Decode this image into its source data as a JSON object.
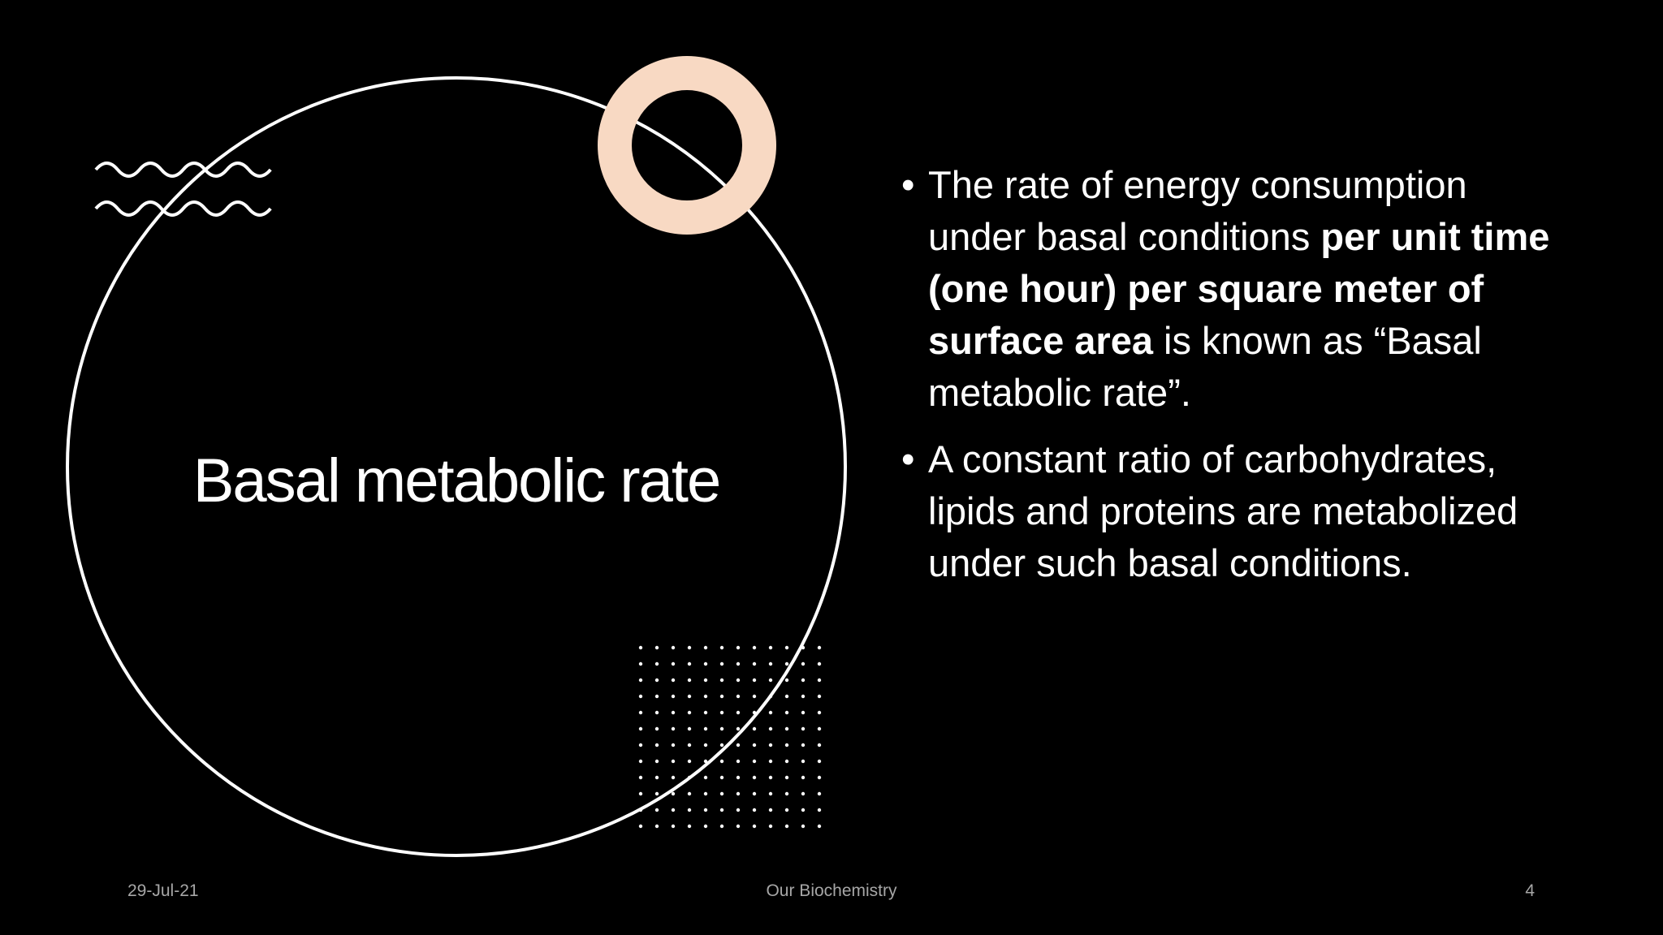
{
  "slide": {
    "title": "Basal metabolic rate",
    "bullets": [
      {
        "runs": [
          {
            "text": "The rate of energy consumption under basal conditions ",
            "bold": false
          },
          {
            "text": "per unit time (one hour) per square meter of surface area",
            "bold": true
          },
          {
            "text": " is known as “Basal metabolic rate”.",
            "bold": false
          }
        ]
      },
      {
        "runs": [
          {
            "text": "A constant ratio of carbohydrates, lipids and proteins are metabolized under such basal conditions.",
            "bold": false
          }
        ]
      }
    ],
    "footer": {
      "date": "29-Jul-21",
      "center": "Our Biochemistry",
      "page": "4"
    }
  }
}
